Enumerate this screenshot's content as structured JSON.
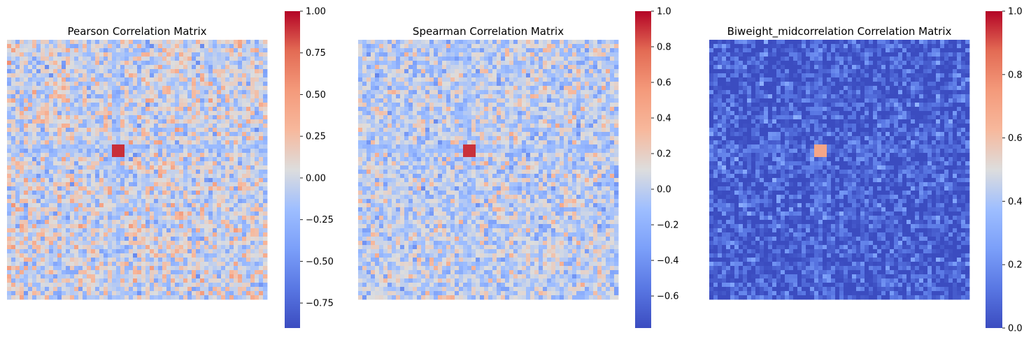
{
  "chart_data": [
    {
      "type": "heatmap",
      "title": "Pearson Correlation Matrix",
      "xlabel": "",
      "ylabel": "",
      "colormap": "coolwarm",
      "colorbar": {
        "vmin": -0.9,
        "vmax": 1.0,
        "ticks": [
          -0.75,
          -0.5,
          -0.25,
          0.0,
          0.25,
          0.5,
          0.75,
          1.0
        ],
        "tick_labels": [
          "−0.75",
          "−0.50",
          "−0.25",
          "0.00",
          "0.25",
          "0.50",
          "0.75",
          "1.00"
        ]
      },
      "matrix": {
        "off_diagonal_center": 0.0,
        "off_diagonal_spread": 0.3,
        "high_block_value": 0.9,
        "band_value": -0.15
      }
    },
    {
      "type": "heatmap",
      "title": "Spearman Correlation Matrix",
      "xlabel": "",
      "ylabel": "",
      "colormap": "coolwarm",
      "colorbar": {
        "vmin": -0.78,
        "vmax": 1.0,
        "ticks": [
          -0.6,
          -0.4,
          -0.2,
          0.0,
          0.2,
          0.4,
          0.6,
          0.8,
          1.0
        ],
        "tick_labels": [
          "−0.6",
          "−0.4",
          "−0.2",
          "0.0",
          "0.2",
          "0.4",
          "0.6",
          "0.8",
          "1.0"
        ]
      },
      "matrix": {
        "off_diagonal_center": 0.0,
        "off_diagonal_spread": 0.25,
        "high_block_value": 0.9,
        "band_value": -0.1
      }
    },
    {
      "type": "heatmap",
      "title": "Biweight_midcorrelation Correlation Matrix",
      "xlabel": "",
      "ylabel": "",
      "colormap": "coolwarm",
      "colorbar": {
        "vmin": 0.0,
        "vmax": 1.0,
        "ticks": [
          0.0,
          0.2,
          0.4,
          0.6,
          0.8,
          1.0
        ],
        "tick_labels": [
          "0.0",
          "0.2",
          "0.4",
          "0.6",
          "0.8",
          "1.0"
        ]
      },
      "matrix": {
        "off_diagonal_center": 0.05,
        "off_diagonal_spread": 0.15,
        "high_block_value": 0.7,
        "band_value": 0.1
      }
    }
  ]
}
